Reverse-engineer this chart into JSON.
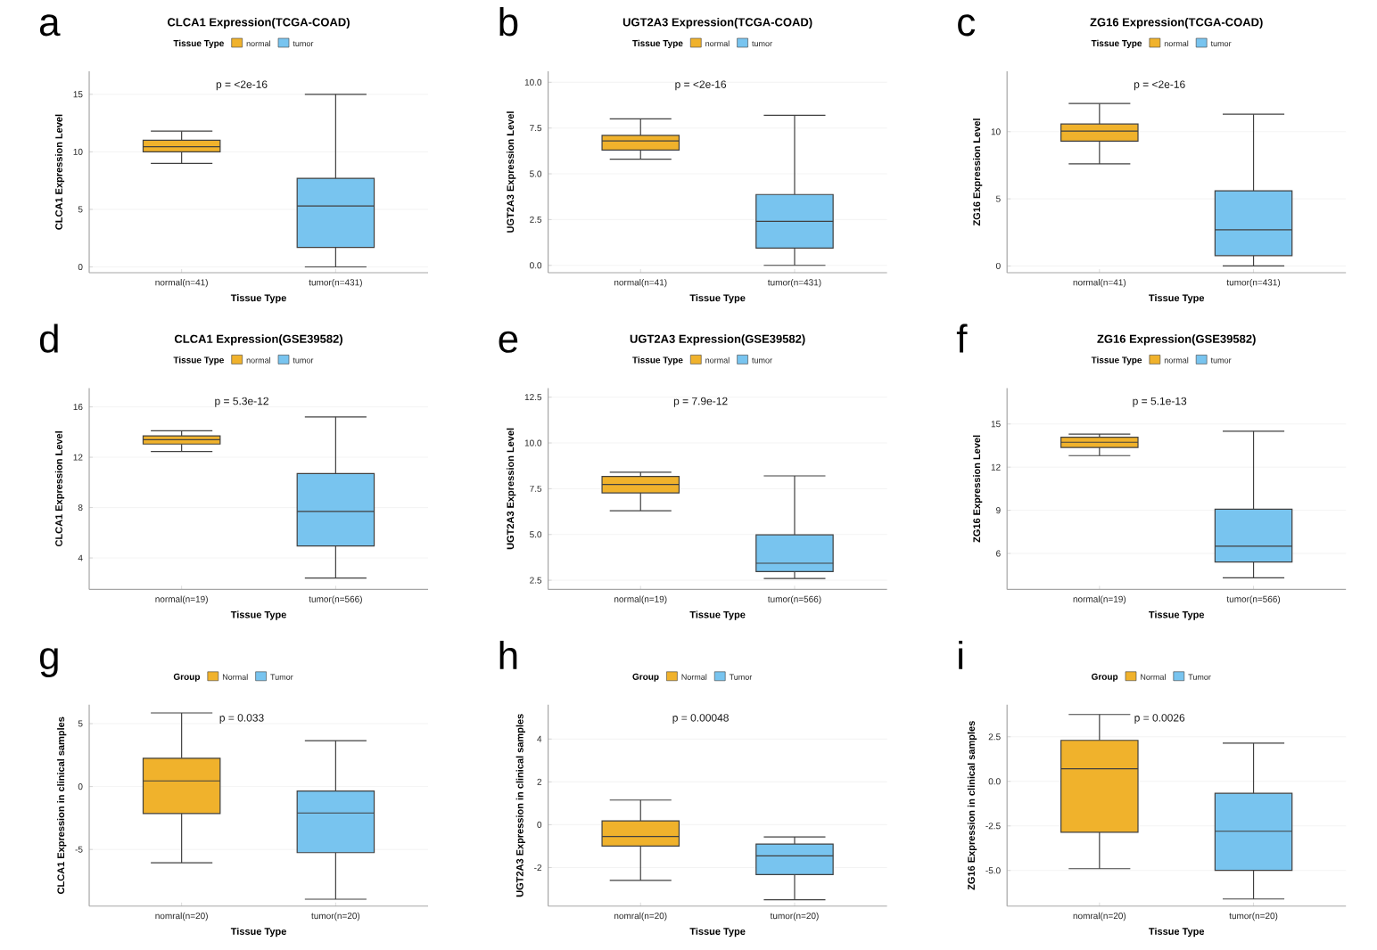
{
  "chart_data": [
    {
      "type": "box",
      "title": "CLCA1 Expression(TCGA-COAD)",
      "xlabel": "Tissue Type",
      "ylabel": "CLCA1 Expression Level",
      "legend_title": "Tissue Type",
      "legend": "top",
      "grid": "y",
      "categories": [
        "normal(n=41)",
        "tumor(n=431)"
      ],
      "ylim": [
        -0.5,
        17
      ],
      "yticks": [
        0,
        5,
        10,
        15
      ],
      "annotations": [
        "a",
        "p = <2e-16"
      ],
      "series": [
        {
          "name": "normal",
          "color": "#f0b22c",
          "boxes": [
            {
              "low": 9,
              "q1": 10,
              "median": 10.45,
              "q3": 11,
              "high": 11.8
            },
            null
          ]
        },
        {
          "name": "tumor",
          "color": "#78c4ef",
          "boxes": [
            null,
            {
              "low": 0,
              "q1": 1.7,
              "median": 5.3,
              "q3": 7.7,
              "high": 15
            }
          ]
        }
      ]
    },
    {
      "type": "box",
      "title": "UGT2A3 Expression(TCGA-COAD)",
      "xlabel": "Tissue Type",
      "ylabel": "UGT2A3 Expression Level",
      "legend_title": "Tissue Type",
      "legend": "top",
      "grid": "y",
      "categories": [
        "normal(n=41)",
        "tumor(n=431)"
      ],
      "ylim": [
        -0.4,
        10.6
      ],
      "yticks": [
        {
          "value": 0,
          "label": "0.0"
        },
        {
          "value": 2.5,
          "label": "2.5"
        },
        {
          "value": 5,
          "label": "5.0"
        },
        {
          "value": 7.5,
          "label": "7.5"
        },
        {
          "value": 10,
          "label": "10.0"
        }
      ],
      "annotations": [
        "b",
        "p = <2e-16"
      ],
      "series": [
        {
          "name": "normal",
          "color": "#f0b22c",
          "boxes": [
            {
              "low": 5.8,
              "q1": 6.3,
              "median": 6.8,
              "q3": 7.1,
              "high": 8
            },
            null
          ]
        },
        {
          "name": "tumor",
          "color": "#78c4ef",
          "boxes": [
            null,
            {
              "low": 0,
              "q1": 0.94,
              "median": 2.4,
              "q3": 3.87,
              "high": 8.2
            }
          ]
        }
      ]
    },
    {
      "type": "box",
      "title": "ZG16 Expression(TCGA-COAD)",
      "xlabel": "Tissue Type",
      "ylabel": "ZG16 Expression Level",
      "legend_title": "Tissue Type",
      "legend": "top",
      "grid": "y",
      "categories": [
        "normal(n=41)",
        "tumor(n=431)"
      ],
      "ylim": [
        -0.5,
        14.5
      ],
      "yticks": [
        0,
        5,
        10
      ],
      "annotations": [
        "c",
        "p = <2e-16"
      ],
      "series": [
        {
          "name": "normal",
          "color": "#f0b22c",
          "boxes": [
            {
              "low": 7.6,
              "q1": 9.3,
              "median": 10.04,
              "q3": 10.57,
              "high": 12.1
            },
            null
          ]
        },
        {
          "name": "tumor",
          "color": "#78c4ef",
          "boxes": [
            null,
            {
              "low": 0,
              "q1": 0.77,
              "median": 2.7,
              "q3": 5.6,
              "high": 11.3
            }
          ]
        }
      ]
    },
    {
      "type": "box",
      "title": "CLCA1 Expression(GSE39582)",
      "xlabel": "Tissue Type",
      "ylabel": "CLCA1 Expression Level",
      "legend_title": "Tissue Type",
      "legend": "top",
      "grid": "y",
      "categories": [
        "normal(n=19)",
        "tumor(n=566)"
      ],
      "ylim": [
        1.5,
        17.5
      ],
      "yticks": [
        4,
        8,
        12,
        16
      ],
      "annotations": [
        "d",
        "p = 5.3e-12"
      ],
      "series": [
        {
          "name": "normal",
          "color": "#f0b22c",
          "boxes": [
            {
              "low": 12.45,
              "q1": 13.05,
              "median": 13.4,
              "q3": 13.7,
              "high": 14.1
            },
            null
          ]
        },
        {
          "name": "tumor",
          "color": "#78c4ef",
          "boxes": [
            null,
            {
              "low": 2.4,
              "q1": 4.95,
              "median": 7.7,
              "q3": 10.7,
              "high": 15.2
            }
          ]
        }
      ]
    },
    {
      "type": "box",
      "title": "UGT2A3 Expression(GSE39582)",
      "xlabel": "Tissue Type",
      "ylabel": "UGT2A3 Expression Level",
      "legend_title": "Tissue Type",
      "legend": "top",
      "grid": "y",
      "categories": [
        "normal(n=19)",
        "tumor(n=566)"
      ],
      "ylim": [
        2,
        13
      ],
      "yticks": [
        {
          "value": 2.5,
          "label": "2.5"
        },
        {
          "value": 5,
          "label": "5.0"
        },
        {
          "value": 7.5,
          "label": "7.5"
        },
        {
          "value": 10,
          "label": "10.0"
        },
        {
          "value": 12.5,
          "label": "12.5"
        }
      ],
      "annotations": [
        "e",
        "p = 7.9e-12"
      ],
      "series": [
        {
          "name": "normal",
          "color": "#f0b22c",
          "boxes": [
            {
              "low": 6.3,
              "q1": 7.27,
              "median": 7.73,
              "q3": 8.17,
              "high": 8.4
            },
            null
          ]
        },
        {
          "name": "tumor",
          "color": "#78c4ef",
          "boxes": [
            null,
            {
              "low": 2.6,
              "q1": 2.97,
              "median": 3.43,
              "q3": 4.98,
              "high": 8.2
            }
          ]
        }
      ]
    },
    {
      "type": "box",
      "title": "ZG16 Expression(GSE39582)",
      "xlabel": "Tissue Type",
      "ylabel": "ZG16 Expression Level",
      "legend_title": "Tissue Type",
      "legend": "top",
      "grid": "y",
      "categories": [
        "normal(n=19)",
        "tumor(n=566)"
      ],
      "ylim": [
        3.5,
        17.5
      ],
      "yticks": [
        6,
        9,
        12,
        15
      ],
      "annotations": [
        "f",
        "p = 5.1e-13"
      ],
      "series": [
        {
          "name": "normal",
          "color": "#f0b22c",
          "boxes": [
            {
              "low": 12.8,
              "q1": 13.37,
              "median": 13.73,
              "q3": 14.08,
              "high": 14.3
            },
            null
          ]
        },
        {
          "name": "tumor",
          "color": "#78c4ef",
          "boxes": [
            null,
            {
              "low": 4.3,
              "q1": 5.4,
              "median": 6.5,
              "q3": 9.07,
              "high": 14.5
            }
          ]
        }
      ]
    },
    {
      "type": "box",
      "xlabel": "Tissue Type",
      "ylabel": "CLCA1 Expression in clinical samples",
      "legend_title": "Group",
      "legend": "top",
      "grid": "y",
      "categories": [
        "nomral(n=20)",
        "tumor(n=20)"
      ],
      "ylim": [
        -9.5,
        6.5
      ],
      "yticks": [
        -5,
        0,
        5
      ],
      "annotations": [
        "g",
        "p = 0.033"
      ],
      "series": [
        {
          "name": "Normal",
          "color": "#f0b22c",
          "boxes": [
            {
              "low": -6.05,
              "q1": -2.15,
              "median": 0.45,
              "q3": 2.25,
              "high": 5.85
            },
            null
          ]
        },
        {
          "name": "Tumor",
          "color": "#78c4ef",
          "boxes": [
            null,
            {
              "low": -8.95,
              "q1": -5.25,
              "median": -2.1,
              "q3": -0.35,
              "high": 3.65
            }
          ]
        }
      ]
    },
    {
      "type": "box",
      "xlabel": "Tissue Type",
      "ylabel": "UGT2A3 Expression in clinical samples",
      "legend_title": "Group",
      "legend": "top",
      "grid": "y",
      "categories": [
        "nomral(n=20)",
        "tumor(n=20)"
      ],
      "ylim": [
        -3.8,
        5.6
      ],
      "yticks": [
        -2,
        0,
        2,
        4
      ],
      "annotations": [
        "h",
        "p = 0.00048"
      ],
      "series": [
        {
          "name": "Normal",
          "color": "#f0b22c",
          "boxes": [
            {
              "low": -2.6,
              "q1": -1.0,
              "median": -0.55,
              "q3": 0.18,
              "high": 1.15
            },
            null
          ]
        },
        {
          "name": "Tumor",
          "color": "#78c4ef",
          "boxes": [
            null,
            {
              "low": -3.5,
              "q1": -2.33,
              "median": -1.45,
              "q3": -0.9,
              "high": -0.57
            }
          ]
        }
      ]
    },
    {
      "type": "box",
      "xlabel": "Tissue Type",
      "ylabel": "ZG16 Expression in clinical samples",
      "legend_title": "Group",
      "legend": "top",
      "grid": "y",
      "categories": [
        "nomral(n=20)",
        "tumor(n=20)"
      ],
      "ylim": [
        -7,
        4.3
      ],
      "yticks": [
        {
          "value": -5,
          "label": "-5.0"
        },
        {
          "value": -2.5,
          "label": "-2.5"
        },
        {
          "value": 0,
          "label": "0.0"
        },
        {
          "value": 2.5,
          "label": "2.5"
        }
      ],
      "annotations": [
        "i",
        "p = 0.0026"
      ],
      "series": [
        {
          "name": "Normal",
          "color": "#f0b22c",
          "boxes": [
            {
              "low": -4.9,
              "q1": -2.86,
              "median": 0.71,
              "q3": 2.3,
              "high": 3.75
            },
            null
          ]
        },
        {
          "name": "Tumor",
          "color": "#78c4ef",
          "boxes": [
            null,
            {
              "low": -6.6,
              "q1": -4.99,
              "median": -2.8,
              "q3": -0.67,
              "high": 2.14
            }
          ]
        }
      ]
    }
  ]
}
